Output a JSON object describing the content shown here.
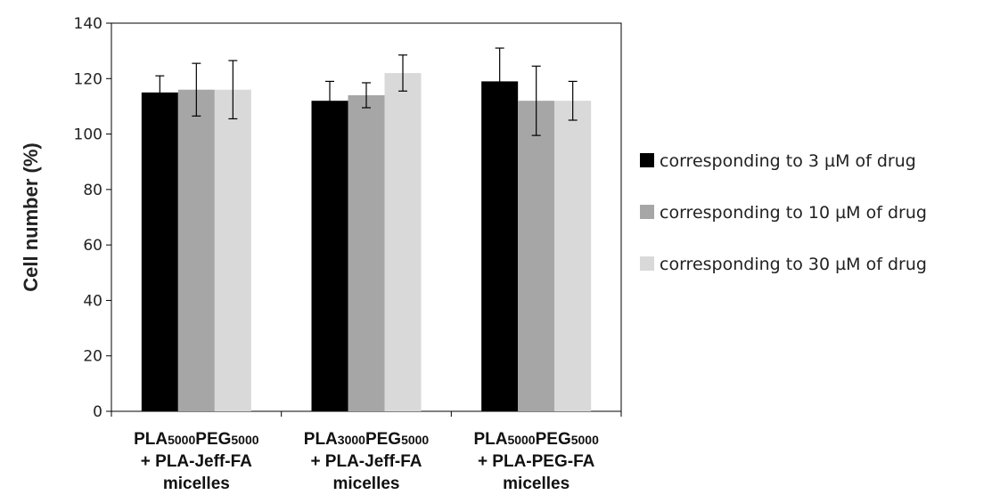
{
  "chart_data": {
    "type": "bar",
    "ylabel": "Cell number (%)",
    "xlabel": "",
    "ylim": [
      0,
      140
    ],
    "yticks": [
      0,
      20,
      40,
      60,
      80,
      100,
      120,
      140
    ],
    "grid": false,
    "legend_position": "right",
    "categories": [
      {
        "lines": [
          [
            {
              "t": "PLA",
              "sub": false
            },
            {
              "t": "5000",
              "sub": true
            },
            {
              "t": "PEG",
              "sub": false
            },
            {
              "t": "5000",
              "sub": true
            }
          ],
          [
            {
              "t": "+ PLA-Jeff-FA",
              "sub": false
            }
          ],
          [
            {
              "t": "micelles",
              "sub": false
            }
          ]
        ]
      },
      {
        "lines": [
          [
            {
              "t": "PLA",
              "sub": false
            },
            {
              "t": "3000",
              "sub": true
            },
            {
              "t": "PEG",
              "sub": false
            },
            {
              "t": "5000",
              "sub": true
            }
          ],
          [
            {
              "t": "+ PLA-Jeff-FA",
              "sub": false
            }
          ],
          [
            {
              "t": "micelles",
              "sub": false
            }
          ]
        ]
      },
      {
        "lines": [
          [
            {
              "t": "PLA",
              "sub": false
            },
            {
              "t": "5000",
              "sub": true
            },
            {
              "t": "PEG",
              "sub": false
            },
            {
              "t": "5000",
              "sub": true
            }
          ],
          [
            {
              "t": "+ PLA-PEG-FA",
              "sub": false
            }
          ],
          [
            {
              "t": "micelles",
              "sub": false
            }
          ]
        ]
      }
    ],
    "series": [
      {
        "name": "corresponding to 3 µM of drug",
        "color": "#000000",
        "values": [
          115,
          112,
          119
        ],
        "errors": [
          6,
          7,
          12
        ]
      },
      {
        "name": "corresponding to 10 µM of drug",
        "color": "#a6a6a6",
        "values": [
          116,
          114,
          112
        ],
        "errors": [
          9.5,
          4.5,
          12.5
        ]
      },
      {
        "name": "corresponding to 30 µM of drug",
        "color": "#d9d9d9",
        "values": [
          116,
          122,
          112
        ],
        "errors": [
          10.5,
          6.5,
          7
        ]
      }
    ]
  }
}
